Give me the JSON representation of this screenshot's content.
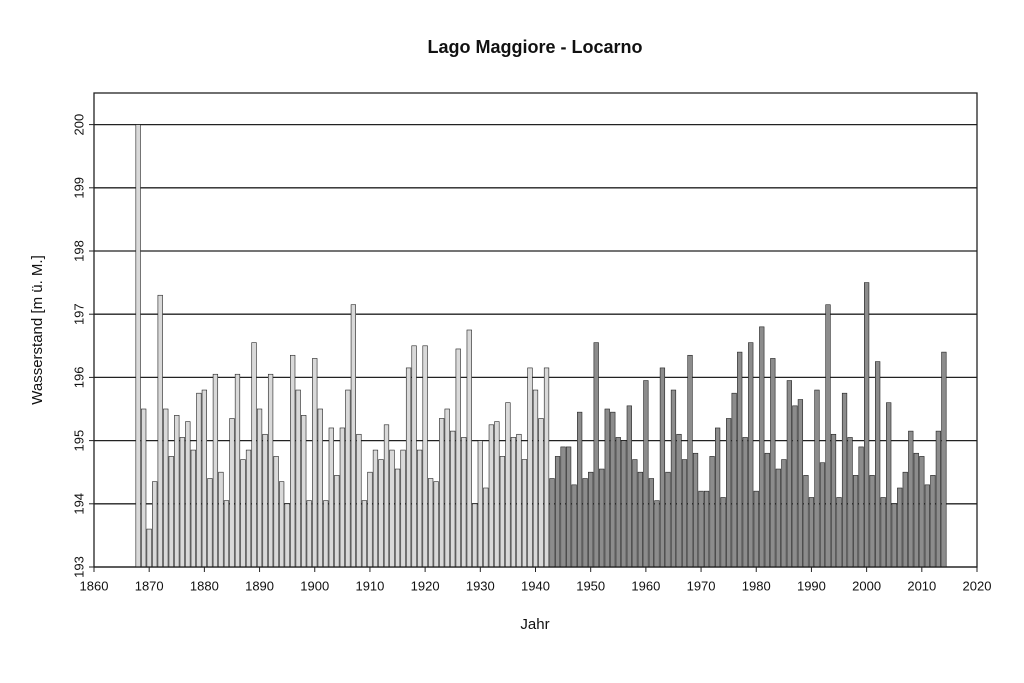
{
  "chart_data": {
    "type": "bar",
    "title": "Lago Maggiore - Locarno",
    "x_label": "Jahr",
    "y_label": "Wasserstand [m ü. M.]",
    "xlim": [
      1860,
      2020
    ],
    "xticks": [
      1860,
      1870,
      1880,
      1890,
      1900,
      1910,
      1920,
      1930,
      1940,
      1950,
      1960,
      1970,
      1980,
      1990,
      2000,
      2010,
      2020
    ],
    "ylim": [
      193,
      200.5
    ],
    "yticks": [
      193,
      194,
      195,
      196,
      197,
      198,
      199,
      200
    ],
    "grid": true,
    "series": [
      {
        "color": "#d9d9d9",
        "x": [
          1868,
          1869,
          1870,
          1871,
          1872,
          1873,
          1874,
          1875,
          1876,
          1877,
          1878,
          1879,
          1880,
          1881,
          1882,
          1883,
          1884,
          1885,
          1886,
          1887,
          1888,
          1889,
          1890,
          1891,
          1892,
          1893,
          1894,
          1895,
          1896,
          1897,
          1898,
          1899,
          1900,
          1901,
          1902,
          1903,
          1904,
          1905,
          1906,
          1907,
          1908,
          1909,
          1910,
          1911,
          1912,
          1913,
          1914,
          1915,
          1916,
          1917,
          1918,
          1919,
          1920,
          1921,
          1922,
          1923,
          1924,
          1925,
          1926,
          1927,
          1928,
          1929,
          1930,
          1931,
          1932,
          1933,
          1934,
          1935,
          1936,
          1937,
          1938,
          1939,
          1940,
          1941,
          1942
        ],
        "values": [
          200.0,
          195.5,
          193.6,
          194.35,
          197.3,
          195.5,
          194.75,
          195.4,
          195.05,
          195.3,
          194.85,
          195.75,
          195.8,
          194.4,
          196.05,
          194.5,
          194.05,
          195.35,
          196.05,
          194.7,
          194.85,
          196.55,
          195.5,
          195.1,
          196.05,
          194.75,
          194.35,
          194.0,
          196.35,
          195.8,
          195.4,
          194.05,
          196.3,
          195.5,
          194.05,
          195.2,
          194.45,
          195.2,
          195.8,
          197.15,
          195.1,
          194.05,
          194.5,
          194.85,
          194.7,
          195.25,
          194.85,
          194.55,
          194.85,
          196.15,
          196.5,
          194.85,
          196.5,
          194.4,
          194.35,
          195.35,
          195.5,
          195.15,
          196.45,
          195.05,
          196.75,
          194.0,
          195.0,
          194.25,
          195.25,
          195.3,
          194.75,
          195.6,
          195.05,
          195.1,
          194.7,
          196.15,
          195.8,
          195.35,
          196.15
        ]
      },
      {
        "color": "#8c8c8c",
        "x": [
          1943,
          1944,
          1945,
          1946,
          1947,
          1948,
          1949,
          1950,
          1951,
          1952,
          1953,
          1954,
          1955,
          1956,
          1957,
          1958,
          1959,
          1960,
          1961,
          1962,
          1963,
          1964,
          1965,
          1966,
          1967,
          1968,
          1969,
          1970,
          1971,
          1972,
          1973,
          1974,
          1975,
          1976,
          1977,
          1978,
          1979,
          1980,
          1981,
          1982,
          1983,
          1984,
          1985,
          1986,
          1987,
          1988,
          1989,
          1990,
          1991,
          1992,
          1993,
          1994,
          1995,
          1996,
          1997,
          1998,
          1999,
          2000,
          2001,
          2002,
          2003,
          2004,
          2005,
          2006,
          2007,
          2008,
          2009,
          2010,
          2011,
          2012,
          2013,
          2014
        ],
        "values": [
          194.4,
          194.75,
          194.9,
          194.9,
          194.3,
          195.45,
          194.4,
          194.5,
          196.55,
          194.55,
          195.5,
          195.45,
          195.05,
          195.0,
          195.55,
          194.7,
          194.5,
          195.95,
          194.4,
          194.05,
          196.15,
          194.5,
          195.8,
          195.1,
          194.7,
          196.35,
          194.8,
          194.2,
          194.2,
          194.75,
          195.2,
          194.1,
          195.35,
          195.75,
          196.4,
          195.05,
          196.55,
          194.2,
          196.8,
          194.8,
          196.3,
          194.55,
          194.7,
          195.95,
          195.55,
          195.65,
          194.45,
          194.1,
          195.8,
          194.65,
          197.15,
          195.1,
          194.1,
          195.75,
          195.05,
          194.45,
          194.9,
          197.5,
          194.45,
          196.25,
          194.1,
          195.6,
          194.0,
          194.25,
          194.5,
          195.15,
          194.8,
          194.75,
          194.3,
          194.45,
          195.15,
          196.4
        ]
      }
    ]
  }
}
